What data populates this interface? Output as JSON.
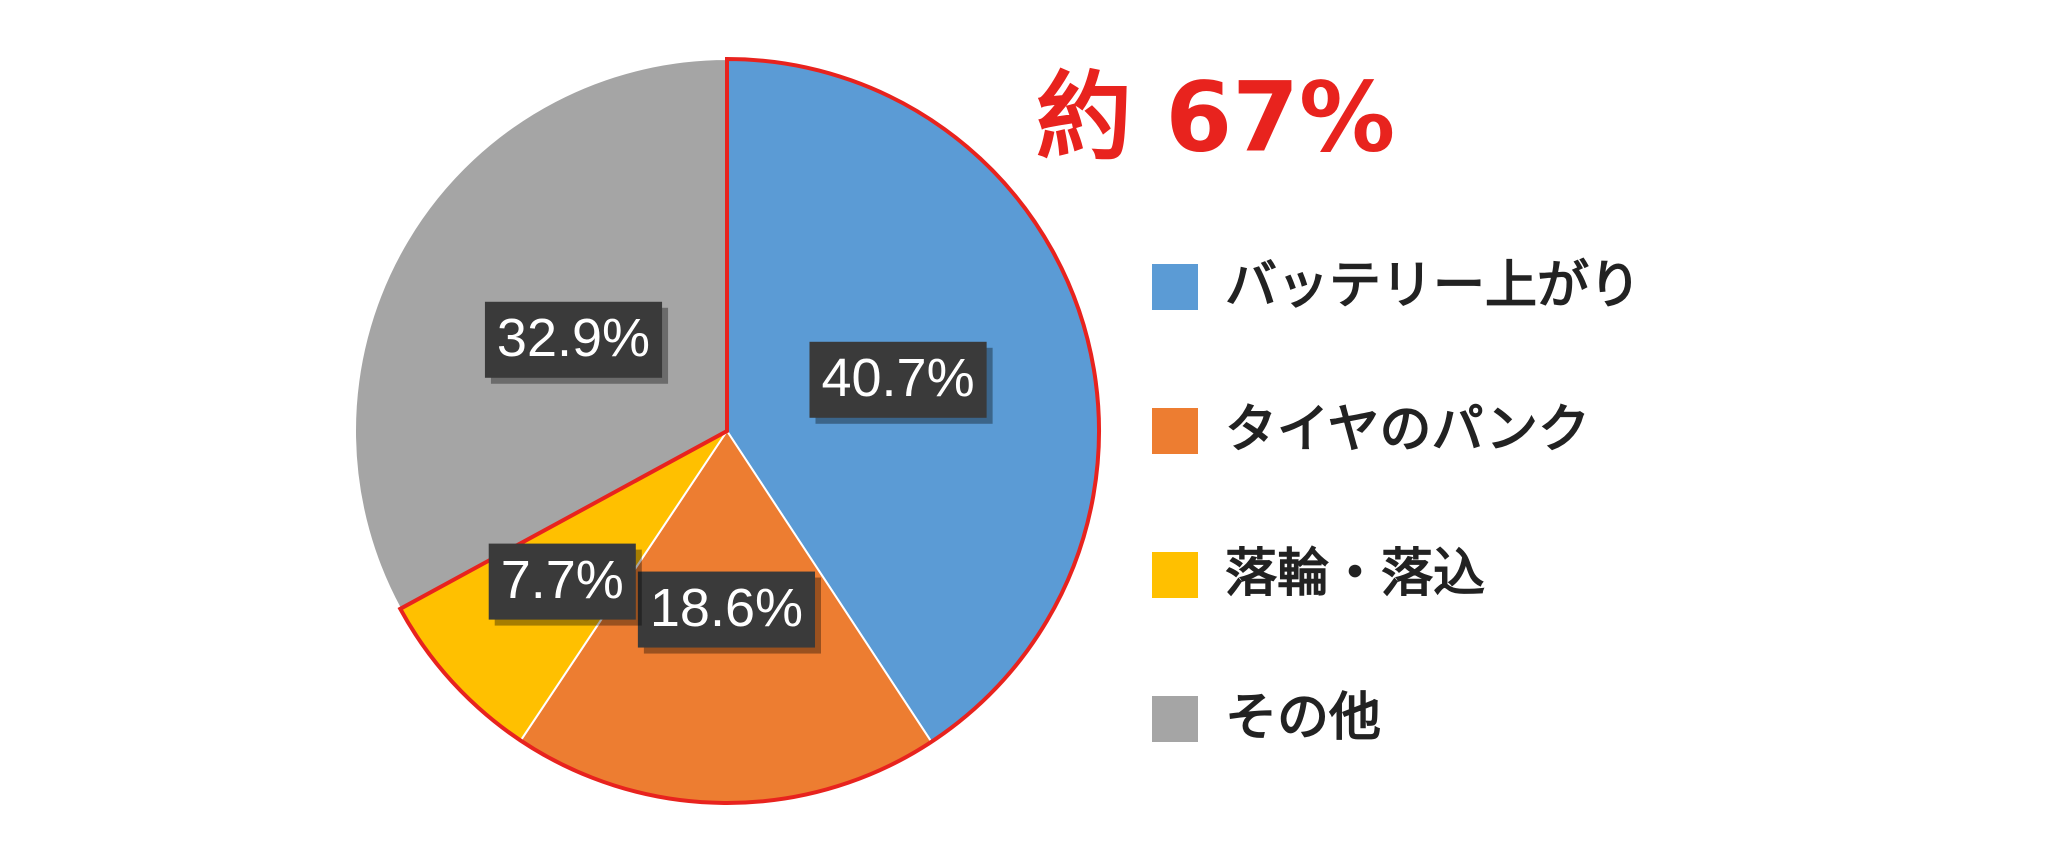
{
  "chart_data": {
    "type": "pie",
    "categories": [
      "バッテリー上がり",
      "タイヤのパンク",
      "落輪・落込",
      "その他"
    ],
    "values": [
      40.7,
      18.6,
      7.7,
      32.9
    ],
    "value_labels": [
      "40.7%",
      "18.6%",
      "7.7%",
      "32.9%"
    ],
    "colors": [
      "#5b9bd5",
      "#ed7d31",
      "#ffc000",
      "#a5a5a5"
    ],
    "annotation": "約 67%",
    "highlight_indices": [
      0,
      1,
      2
    ],
    "highlight_color": "#e8231e",
    "legend": "right"
  }
}
